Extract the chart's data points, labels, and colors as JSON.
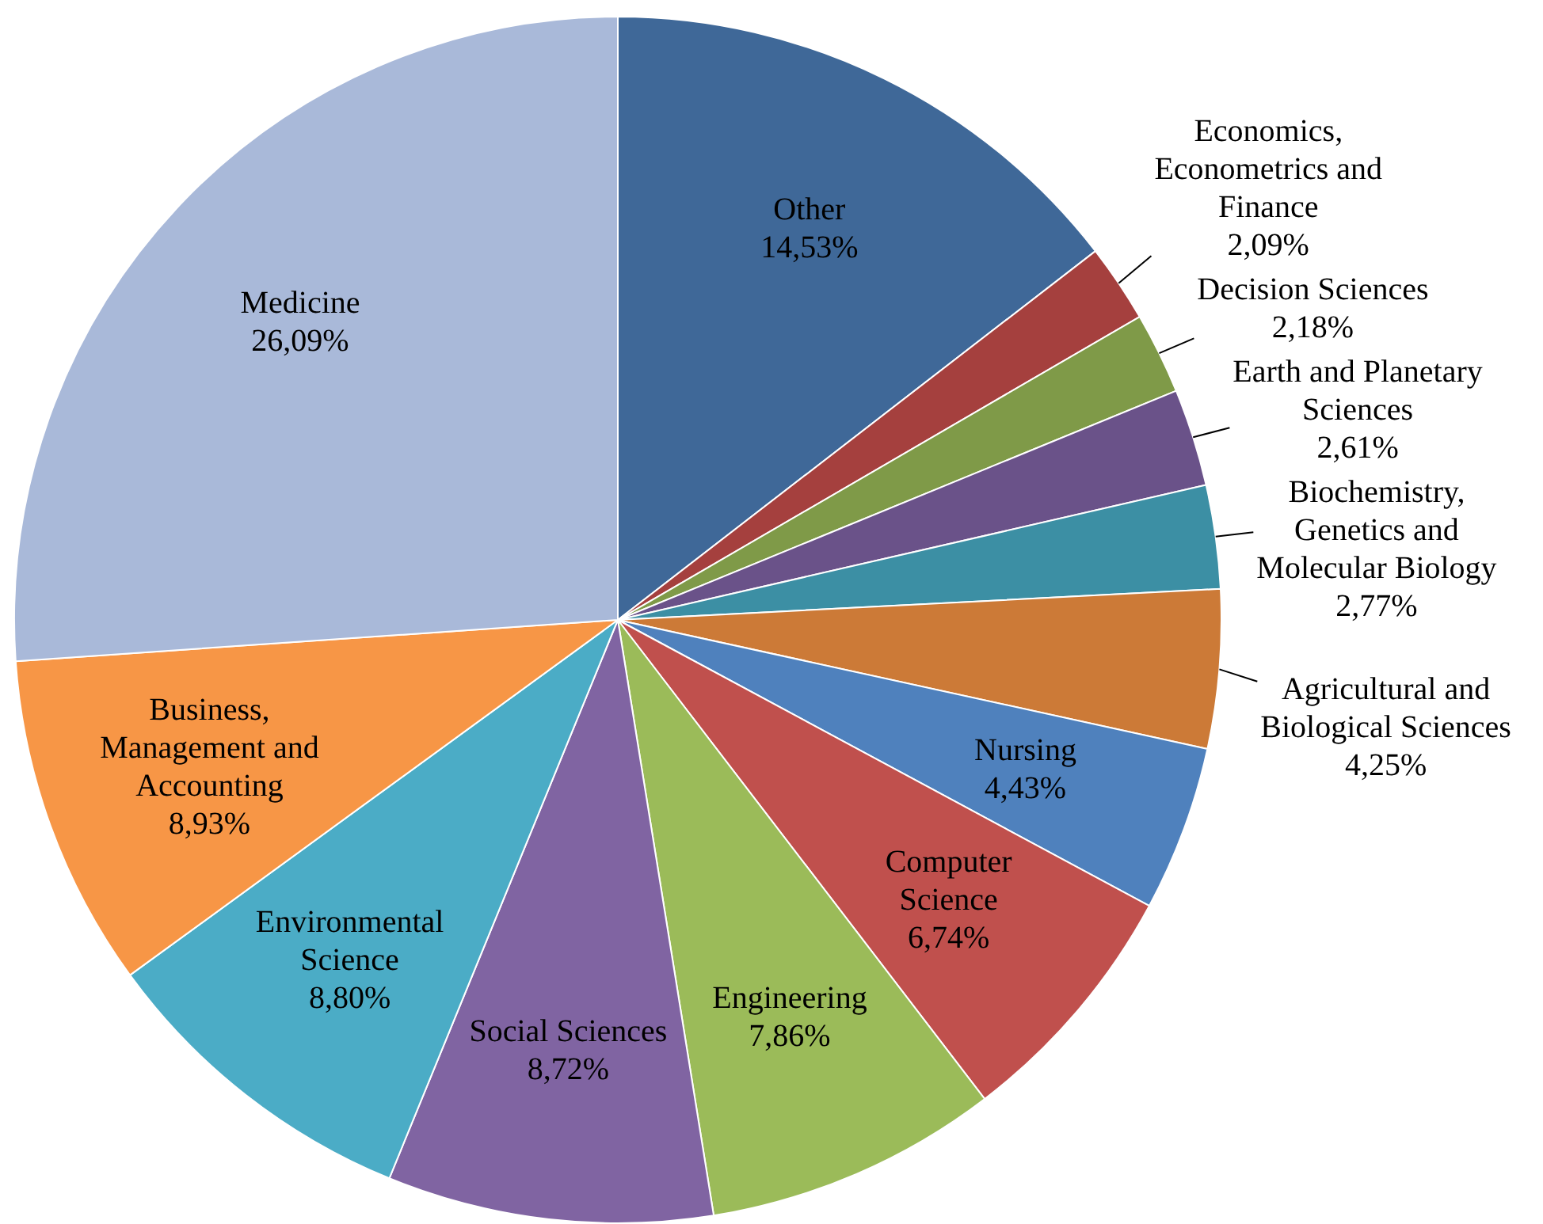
{
  "chart_data": {
    "type": "pie",
    "categories": [
      "Other",
      "Economics, Econometrics and Finance",
      "Decision Sciences",
      "Earth and Planetary Sciences",
      "Biochemistry, Genetics and Molecular Biology",
      "Agricultural and Biological Sciences",
      "Nursing",
      "Computer Science",
      "Engineering",
      "Social Sciences",
      "Environmental Science",
      "Business, Management and Accounting",
      "Medicine"
    ],
    "values": [
      14.53,
      2.09,
      2.18,
      2.61,
      2.77,
      4.25,
      4.43,
      6.74,
      7.86,
      8.72,
      8.8,
      8.93,
      26.09
    ],
    "colors": [
      "#3f6898",
      "#a5403e",
      "#7f9a48",
      "#6a5289",
      "#3c8fa4",
      "#cc7a37",
      "#4f81bd",
      "#c0504d",
      "#9bbb59",
      "#8064a2",
      "#4bacc6",
      "#f79646",
      "#a9b9d9"
    ],
    "value_labels": [
      "14,53%",
      "2,09%",
      "2,18%",
      "2,61%",
      "2,77%",
      "4,25%",
      "4,43%",
      "6,74%",
      "7,86%",
      "8,72%",
      "8,80%",
      "8,93%",
      "26,09%"
    ]
  }
}
